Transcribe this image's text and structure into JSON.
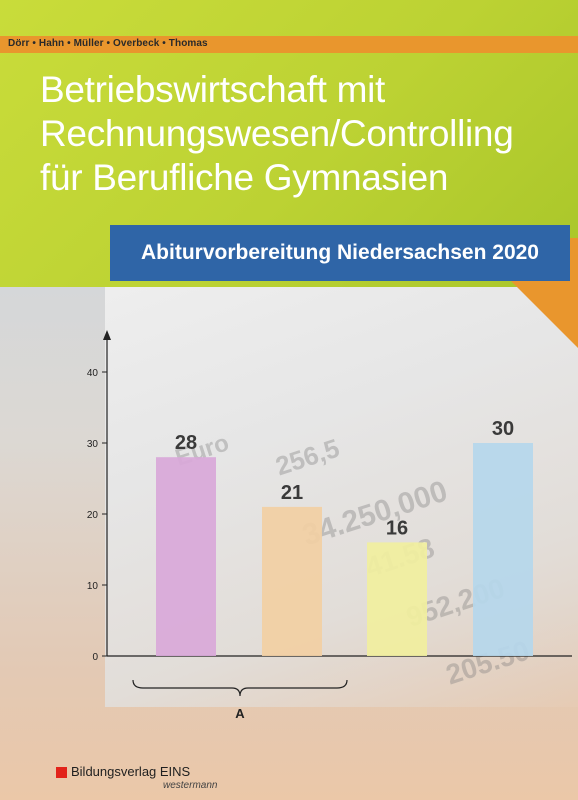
{
  "cover": {
    "authors": "Dörr • Hahn • Müller • Overbeck • Thomas",
    "title_lines": [
      "Betriebswirtschaft mit",
      "Rechnungswesen/Controlling",
      "für Berufliche Gymnasien"
    ],
    "subtitle": "Abiturvorbereitung Niedersachsen 2020",
    "publisher": {
      "name": "Bildungsverlag EINS",
      "sub": "westermann"
    },
    "background_text": [
      "Euro",
      "256,5",
      "34.250,000",
      "41.58",
      "952,200",
      "205.50"
    ]
  },
  "colors": {
    "green": "#c3d837",
    "orange": "#e9962d",
    "blue": "#2f65a7",
    "publisher_red": "#e2231a"
  },
  "chart_data": {
    "type": "bar",
    "categories": [
      "",
      "",
      "",
      ""
    ],
    "values": [
      28,
      21,
      16,
      30
    ],
    "data_labels": [
      "28",
      "21",
      "16",
      "30"
    ],
    "colors": [
      "#d9a8d9",
      "#f2cfa3",
      "#f1ef9e",
      "#b5d7ec"
    ],
    "ylim": [
      0,
      40
    ],
    "yticks": [
      0,
      10,
      20,
      30,
      40
    ],
    "group_label": "A",
    "title": "",
    "xlabel": "",
    "ylabel": ""
  }
}
